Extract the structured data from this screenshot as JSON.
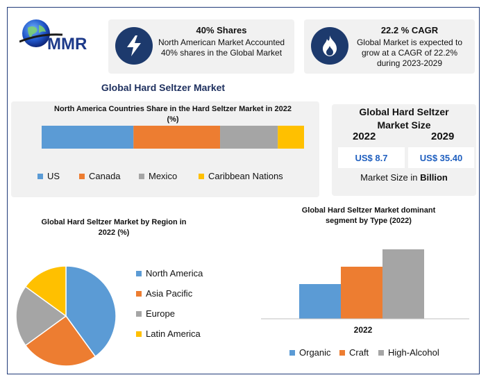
{
  "colors": {
    "blue": "#5b9bd5",
    "orange": "#ed7d31",
    "gray": "#a5a5a5",
    "yellow": "#ffc000",
    "navy": "#1d3a6d"
  },
  "logo": {
    "text": "MMR"
  },
  "info_cards": [
    {
      "title": "40% Shares",
      "desc_line1": "North American Market Accounted",
      "desc_line2": "40% shares in the Global Market",
      "desc_line3": "",
      "icon": "lightning-icon"
    },
    {
      "title": "22.2 % CAGR",
      "desc_line1": "Global Market is expected to",
      "desc_line2": "grow at a CAGR of 22.2%",
      "desc_line3": "during 2023-2029",
      "icon": "flame-icon"
    }
  ],
  "main_title": "Global Hard Seltzer Market",
  "market_size": {
    "title_line1": "Global Hard Seltzer",
    "title_line2": "Market Size",
    "year_start": "2022",
    "year_end": "2029",
    "value_start": "US$ 8.7",
    "value_end": "US$ 35.40",
    "unit_prefix": "Market Size in ",
    "unit_bold": "Billion"
  },
  "chart_data": [
    {
      "type": "bar",
      "orientation": "horizontal-stacked",
      "title_line1": "North America Countries Share in the Hard Seltzer Market in 2022",
      "title_line2": "(%)",
      "series": [
        {
          "name": "US",
          "values": [
            35
          ]
        },
        {
          "name": "Canada",
          "values": [
            33
          ]
        },
        {
          "name": "Mexico",
          "values": [
            22
          ]
        },
        {
          "name": "Caribbean Nations",
          "values": [
            10
          ]
        }
      ],
      "legend": "bottom"
    },
    {
      "type": "pie",
      "title_line1": "Global Hard Seltzer Market by Region in",
      "title_line2": "2022 (%)",
      "slices": [
        {
          "name": "North America",
          "value": 40
        },
        {
          "name": "Asia Pacific",
          "value": 25
        },
        {
          "name": "Europe",
          "value": 20
        },
        {
          "name": "Latin America",
          "value": 15
        }
      ],
      "legend": "right"
    },
    {
      "type": "bar",
      "title_line1": "Global Hard Seltzer Market dominant",
      "title_line2": "segment by Type (2022)",
      "categories": [
        "2022"
      ],
      "series": [
        {
          "name": "Organic",
          "values": [
            50
          ]
        },
        {
          "name": "Craft",
          "values": [
            75
          ]
        },
        {
          "name": "High-Alcohol",
          "values": [
            100
          ]
        }
      ],
      "ylim": [
        0,
        100
      ],
      "legend": "bottom"
    }
  ]
}
